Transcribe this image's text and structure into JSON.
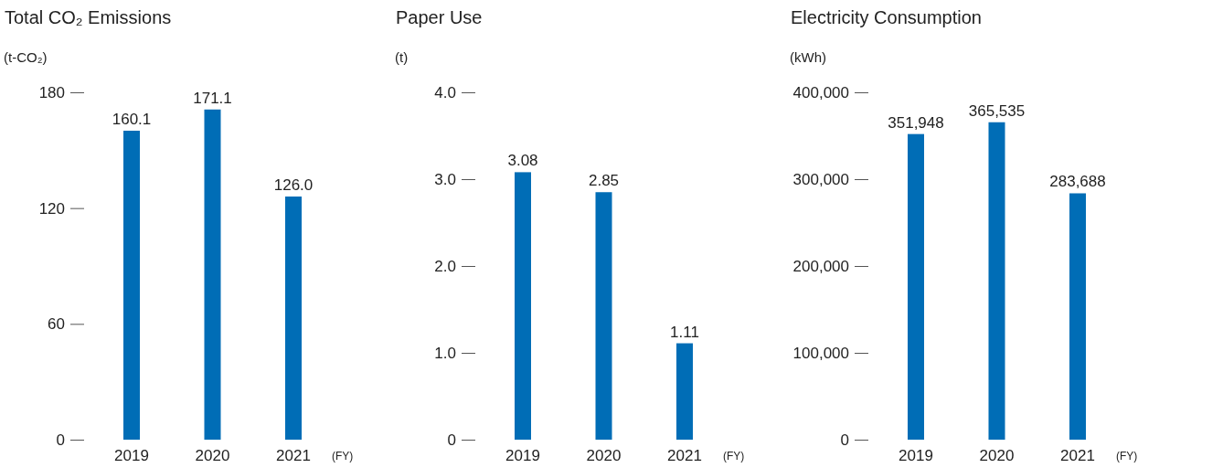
{
  "chart_data": [
    {
      "type": "bar",
      "title": "Total CO₂ Emissions",
      "ylabel": "(t-CO₂)",
      "categories": [
        "2019",
        "2020",
        "2021"
      ],
      "values": [
        160.1,
        171.1,
        126.0
      ],
      "value_labels": [
        "160.1",
        "171.1",
        "126.0"
      ],
      "color": "#006db6",
      "ylim": [
        0,
        180
      ],
      "yticks": [
        0,
        60,
        120,
        180
      ],
      "grid": false,
      "annotations": [
        "(FY)"
      ]
    },
    {
      "type": "bar",
      "title": "Paper Use",
      "ylabel": "(t)",
      "categories": [
        "2019",
        "2020",
        "2021"
      ],
      "values": [
        3.08,
        2.85,
        1.11
      ],
      "value_labels": [
        "3.08",
        "2.85",
        "1.11"
      ],
      "color": "#006db6",
      "ylim": [
        0,
        4
      ],
      "yticks": [
        {
          "value": 0,
          "label": "0"
        },
        {
          "value": 1,
          "label": "1.0"
        },
        {
          "value": 2,
          "label": "2.0"
        },
        {
          "value": 3,
          "label": "3.0"
        },
        {
          "value": 4,
          "label": "4.0"
        }
      ],
      "grid": false,
      "annotations": [
        "(FY)"
      ]
    },
    {
      "type": "bar",
      "title": "Electricity Consumption",
      "ylabel": "(kWh)",
      "categories": [
        "2019",
        "2020",
        "2021"
      ],
      "values": [
        351948,
        365535,
        283688
      ],
      "value_labels": [
        "351,948",
        "365,535",
        "283,688"
      ],
      "color": "#006db6",
      "ylim": [
        0,
        400000
      ],
      "yticks": [
        {
          "value": 0,
          "label": "0"
        },
        {
          "value": 100000,
          "label": "100,000"
        },
        {
          "value": 200000,
          "label": "200,000"
        },
        {
          "value": 300000,
          "label": "300,000"
        },
        {
          "value": 400000,
          "label": "400,000"
        }
      ],
      "grid": false,
      "annotations": [
        "(FY)"
      ]
    }
  ]
}
